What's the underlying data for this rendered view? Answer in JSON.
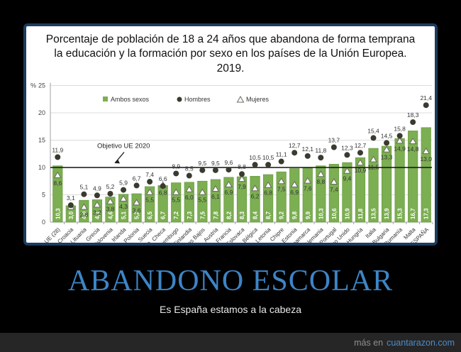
{
  "meme": {
    "headline": "ABANDONO ESCOLAR",
    "subtitle": "Es España estamos a la cabeza",
    "watermark_prefix": "más en",
    "watermark_site": "cuantarazon.com"
  },
  "chart": {
    "title": "Porcentaje de población de 18 a 24 años que abandona de forma temprana la educación y la formación por sexo en los países de la Unión Europea. 2019.",
    "y_unit_label": "%"
  },
  "chart_data": {
    "type": "bar",
    "title": "Porcentaje de población de 18 a 24 años que abandona de forma temprana la educación y la formación por sexo en los países de la Unión Europea. 2019.",
    "ylabel": "%",
    "ylim": [
      0,
      25
    ],
    "yticks": [
      0,
      5,
      10,
      15,
      20,
      25
    ],
    "grid": true,
    "legend_position": "top",
    "target_line": {
      "label": "Objetivo UE 2020",
      "value": 10
    },
    "categories": [
      "UE (28)",
      "Croacia",
      "Lituania",
      "Grecia",
      "Eslovenia",
      "Irlanda",
      "Polonia",
      "Suecia",
      "R. Checa",
      "Luxembugo",
      "Finlandia",
      "Países Bajos",
      "Austria",
      "Francia",
      "R. Eslovaca",
      "Bélgica",
      "Letonia",
      "Chipre",
      "Estonia",
      "Dinamarca",
      "Alemania",
      "Portugal",
      "Reino Unido",
      "Hungría",
      "Italia",
      "Bulgaria",
      "Rumanía",
      "Malta",
      "ESPAÑA"
    ],
    "series": [
      {
        "name": "Ambos sexos",
        "marker": "bar",
        "values": [
          10.3,
          3.0,
          4.0,
          4.1,
          4.6,
          5.1,
          5.2,
          6.5,
          6.7,
          7.2,
          7.3,
          7.5,
          7.8,
          8.2,
          8.3,
          8.4,
          8.7,
          9.2,
          9.8,
          9.9,
          10.3,
          10.6,
          10.9,
          11.8,
          13.5,
          13.9,
          15.3,
          16.7,
          17.3
        ]
      },
      {
        "name": "Hombres",
        "marker": "dot",
        "values": [
          11.9,
          3.1,
          5.1,
          4.9,
          5.2,
          5.9,
          6.7,
          7.4,
          6.6,
          8.9,
          8.5,
          9.5,
          9.5,
          9.6,
          8.8,
          10.5,
          10.5,
          11.1,
          12.7,
          12.1,
          11.8,
          13.7,
          12.3,
          12.7,
          15.4,
          14.5,
          15.8,
          18.3,
          21.4
        ]
      },
      {
        "name": "Mujeres",
        "marker": "triangle",
        "values": [
          8.6,
          2.8,
          2.8,
          3.2,
          3.8,
          4.3,
          3.6,
          5.5,
          6.8,
          5.5,
          6.0,
          5.5,
          6.1,
          6.9,
          7.9,
          6.2,
          6.8,
          7.5,
          6.9,
          7.6,
          8.8,
          7.4,
          9.4,
          10.9,
          11.5,
          13.3,
          14.9,
          14.8,
          13.0
        ],
        "hidden_label_indexes": [
          1
        ]
      }
    ]
  },
  "colors": {
    "background": "#000000",
    "box_border": "#1c3c5e",
    "bar_green": "#7cae52",
    "bar_green_edge": "#699a41",
    "dot_dark": "#3a3a30",
    "grid_gray": "#dcdcdc",
    "axis_gray": "#a0a0a0",
    "target_line": "#111111",
    "label_dark": "#333333",
    "headline_blue": "#3d85c6",
    "footer_bg": "#262626",
    "watermark_gray": "#8f8f8f",
    "watermark_blue": "#4e8bc9"
  }
}
